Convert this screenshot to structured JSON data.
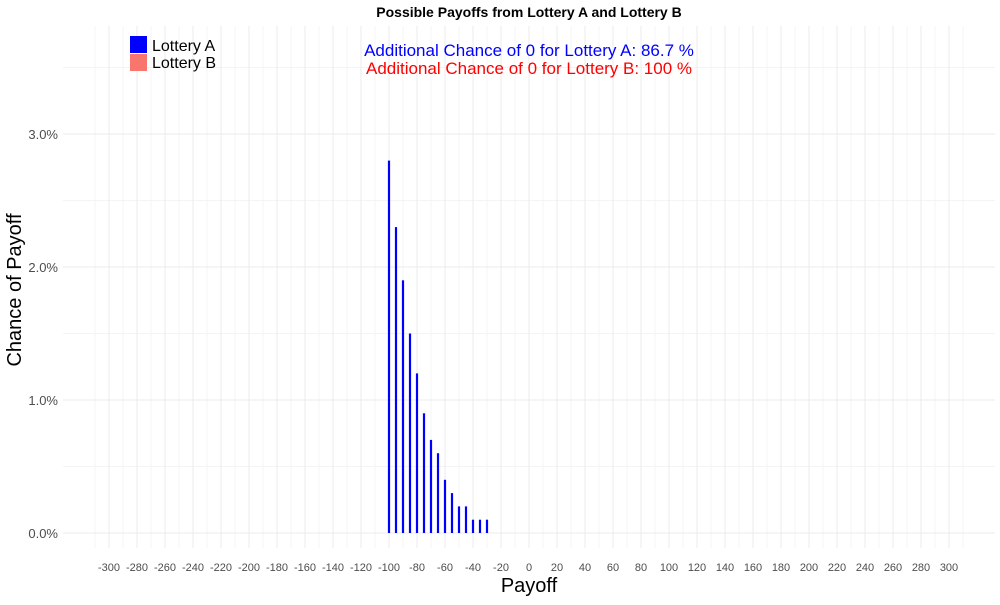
{
  "chart_data": {
    "type": "bar",
    "title": "Possible Payoffs from Lottery A and Lottery B",
    "xlabel": "Payoff",
    "ylabel": "Chance of Payoff",
    "xlim": [
      -310,
      310
    ],
    "ylim": [
      0,
      0.035
    ],
    "x_ticks": [
      -300,
      -280,
      -260,
      -240,
      -220,
      -200,
      -180,
      -160,
      -140,
      -120,
      -100,
      -80,
      -60,
      -40,
      -20,
      0,
      20,
      40,
      60,
      80,
      100,
      120,
      140,
      160,
      180,
      200,
      220,
      240,
      260,
      280,
      300
    ],
    "y_ticks": [
      0,
      0.01,
      0.02,
      0.03
    ],
    "y_tick_labels": [
      "0.0%",
      "1.0%",
      "2.0%",
      "3.0%"
    ],
    "grid": true,
    "legend_position": "top-left",
    "series": [
      {
        "name": "Lottery A",
        "color": "#0000ff",
        "x": [
          -100,
          -95,
          -90,
          -85,
          -80,
          -75,
          -70,
          -65,
          -60,
          -55,
          -50,
          -45,
          -40,
          -35,
          -30
        ],
        "values": [
          0.028,
          0.023,
          0.019,
          0.015,
          0.012,
          0.009,
          0.007,
          0.006,
          0.004,
          0.003,
          0.002,
          0.002,
          0.001,
          0.001,
          0.001
        ]
      },
      {
        "name": "Lottery B",
        "color": "#f8766d",
        "x": [],
        "values": []
      }
    ],
    "annotations": [
      {
        "text": "Additional Chance of 0 for Lottery A:  86.7 %",
        "color": "#0000ff"
      },
      {
        "text": "Additional Chance of 0 for Lottery B:  100 %",
        "color": "#ff0000"
      }
    ]
  }
}
